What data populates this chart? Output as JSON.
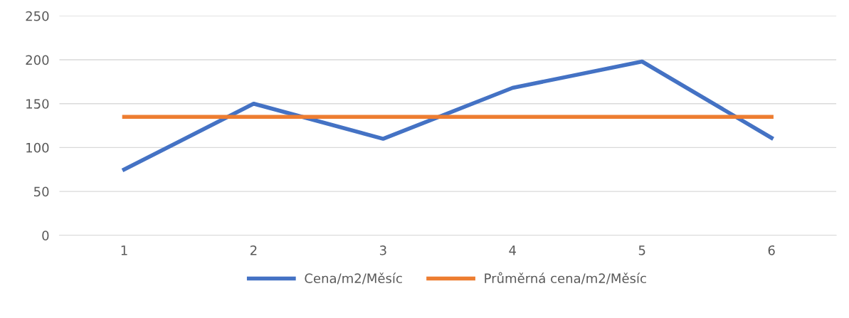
{
  "chart_data": {
    "type": "line",
    "categories": [
      "1",
      "2",
      "3",
      "4",
      "5",
      "6"
    ],
    "series": [
      {
        "name": "Cena/m2/Měsíc",
        "color": "#4472c4",
        "values": [
          75,
          150,
          110,
          168,
          198,
          111
        ]
      },
      {
        "name": "Průměrná cena/m2/Měsíc",
        "color": "#ed7d31",
        "values": [
          135,
          135,
          135,
          135,
          135,
          135
        ]
      }
    ],
    "ylim": [
      0,
      250
    ],
    "yticks": [
      0,
      50,
      100,
      150,
      200,
      250
    ],
    "grid": "y",
    "legend": "bottom",
    "line_style": "solid",
    "marker": "none"
  }
}
